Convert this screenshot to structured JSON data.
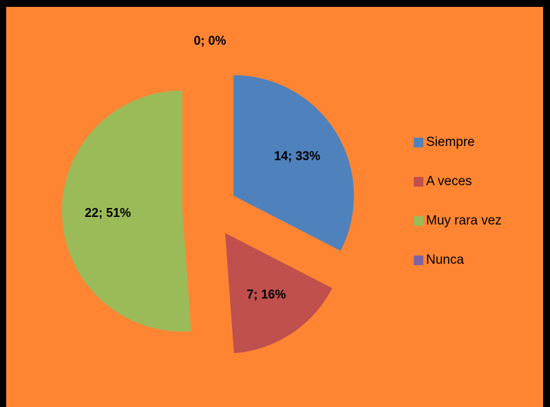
{
  "chart_data": {
    "type": "pie",
    "categories": [
      "Siempre",
      "A veces",
      "Muy rara vez",
      "Nunca"
    ],
    "values": [
      14,
      7,
      22,
      0
    ],
    "value_labels": [
      "14; 33%",
      "7; 16%",
      "22; 51%",
      "0; 0%"
    ],
    "colors": [
      "#4F81BD",
      "#C0504D",
      "#9BBB59",
      "#8064A2"
    ],
    "legend": "right"
  }
}
